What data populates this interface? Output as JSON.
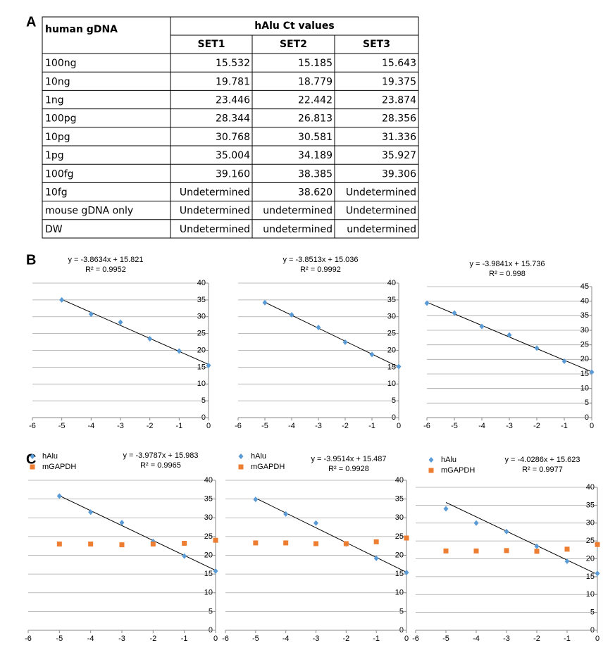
{
  "panels": {
    "a": "A",
    "b": "B",
    "c": "C"
  },
  "table": {
    "header": {
      "sample": "human gDNA",
      "group": "hAlu Ct values"
    },
    "columns": [
      "SET1",
      "SET2",
      "SET3"
    ],
    "rows": [
      [
        "100ng",
        "15.532",
        "15.185",
        "15.643"
      ],
      [
        "10ng",
        "19.781",
        "18.779",
        "19.375"
      ],
      [
        "1ng",
        "23.446",
        "22.442",
        "23.874"
      ],
      [
        "100pg",
        "28.344",
        "26.813",
        "28.356"
      ],
      [
        "10pg",
        "30.768",
        "30.581",
        "31.336"
      ],
      [
        "1pg",
        "35.004",
        "34.189",
        "35.927"
      ],
      [
        "100fg",
        "39.160",
        "38.385",
        "39.306"
      ],
      [
        "10fg",
        "Undetermined",
        "38.620",
        "Undetermined"
      ],
      [
        "mouse gDNA only",
        "Undetermined",
        "undetermined",
        "Undetermined"
      ],
      [
        "DW",
        "Undetermined",
        "undetermined",
        "undetermined"
      ]
    ]
  },
  "chart_data": [
    {
      "type": "scatter",
      "x": [
        -5,
        -4,
        -3,
        -2,
        -1,
        0
      ],
      "series": [
        {
          "color": "#5b9bd5",
          "values": [
            35.004,
            30.768,
            28.344,
            23.446,
            19.781,
            15.532
          ]
        }
      ],
      "equation": "y = -3.8634x + 15.821",
      "r_squared": "R² = 0.9952",
      "trendline": {
        "slope": -3.8634,
        "intercept": 15.821
      },
      "xlim": [
        -6,
        0
      ],
      "xticks": [
        -6,
        -5,
        -4,
        -3,
        -2,
        -1,
        0
      ],
      "ylim": [
        0,
        40
      ],
      "yticks": [
        0,
        5,
        10,
        15,
        20,
        25,
        30,
        35,
        40
      ],
      "grid": true
    },
    {
      "type": "scatter",
      "x": [
        -5,
        -4,
        -3,
        -2,
        -1,
        0
      ],
      "series": [
        {
          "color": "#5b9bd5",
          "values": [
            34.189,
            30.581,
            26.813,
            22.442,
            18.779,
            15.185
          ]
        }
      ],
      "equation": "y = -3.8513x + 15.036",
      "r_squared": "R² = 0.9992",
      "trendline": {
        "slope": -3.8513,
        "intercept": 15.036
      },
      "xlim": [
        -6,
        0
      ],
      "xticks": [
        -6,
        -5,
        -4,
        -3,
        -2,
        -1,
        0
      ],
      "ylim": [
        0,
        40
      ],
      "yticks": [
        0,
        5,
        10,
        15,
        20,
        25,
        30,
        35,
        40
      ],
      "grid": true
    },
    {
      "type": "scatter",
      "x": [
        -6,
        -5,
        -4,
        -3,
        -2,
        -1,
        0
      ],
      "series": [
        {
          "color": "#5b9bd5",
          "values": [
            39.306,
            35.927,
            31.336,
            28.356,
            23.874,
            19.375,
            15.643
          ]
        }
      ],
      "equation": "y = -3.9841x + 15.736",
      "r_squared": "R² = 0.998",
      "trendline": {
        "slope": -3.9841,
        "intercept": 15.736
      },
      "xlim": [
        -6,
        0
      ],
      "xticks": [
        -6,
        -5,
        -4,
        -3,
        -2,
        -1,
        0
      ],
      "ylim": [
        0,
        45
      ],
      "yticks": [
        0,
        5,
        10,
        15,
        20,
        25,
        30,
        35,
        40,
        45
      ],
      "grid": true
    },
    {
      "type": "scatter",
      "x": [
        -5,
        -4,
        -3,
        -2,
        -1,
        0
      ],
      "series": [
        {
          "name": "hAlu",
          "color": "#5b9bd5",
          "values": [
            35.8,
            31.5,
            28.7,
            23.7,
            19.8,
            15.8
          ]
        },
        {
          "name": "mGAPDH",
          "color": "#ed7d31",
          "values": [
            23.0,
            23.0,
            22.8,
            23.0,
            23.2,
            24.0
          ]
        }
      ],
      "equation": "y = -3.9787x + 15.983",
      "r_squared": "R² = 0.9965",
      "trendline": {
        "slope": -3.9787,
        "intercept": 15.983
      },
      "xlim": [
        -6,
        0
      ],
      "xticks": [
        -6,
        -5,
        -4,
        -3,
        -2,
        -1,
        0
      ],
      "ylim": [
        0,
        40
      ],
      "yticks": [
        0,
        5,
        10,
        15,
        20,
        25,
        30,
        35,
        40
      ],
      "grid": true,
      "legend": "top-left"
    },
    {
      "type": "scatter",
      "x": [
        -5,
        -4,
        -3,
        -2,
        -1,
        0
      ],
      "series": [
        {
          "name": "hAlu",
          "color": "#5b9bd5",
          "values": [
            34.9,
            31.0,
            28.6,
            23.0,
            19.2,
            15.4
          ]
        },
        {
          "name": "mGAPDH",
          "color": "#ed7d31",
          "values": [
            23.3,
            23.3,
            23.1,
            23.1,
            23.6,
            24.6
          ]
        }
      ],
      "equation": "y = -3.9514x + 15.487",
      "r_squared": "R² = 0.9928",
      "trendline": {
        "slope": -3.9514,
        "intercept": 15.487
      },
      "xlim": [
        -6,
        0
      ],
      "xticks": [
        -6,
        -5,
        -4,
        -3,
        -2,
        -1,
        0
      ],
      "ylim": [
        0,
        40
      ],
      "yticks": [
        0,
        5,
        10,
        15,
        20,
        25,
        30,
        35,
        40
      ],
      "grid": true,
      "legend": "top-left"
    },
    {
      "type": "scatter",
      "x": [
        -5,
        -4,
        -3,
        -2,
        -1,
        0
      ],
      "series": [
        {
          "name": "hAlu",
          "color": "#5b9bd5",
          "values": [
            34.0,
            30.0,
            27.6,
            23.5,
            19.3,
            15.9
          ]
        },
        {
          "name": "mGAPDH",
          "color": "#ed7d31",
          "values": [
            22.2,
            22.2,
            22.3,
            22.1,
            22.7,
            24.0
          ]
        }
      ],
      "equation": "y = -4.0286x + 15.623",
      "r_squared": "R² = 0.9977",
      "trendline": {
        "slope": -4.0286,
        "intercept": 15.623
      },
      "xlim": [
        -6,
        0
      ],
      "xticks": [
        -6,
        -5,
        -4,
        -3,
        -2,
        -1,
        0
      ],
      "ylim": [
        0,
        40
      ],
      "yticks": [
        0,
        5,
        10,
        15,
        20,
        25,
        30,
        35,
        40
      ],
      "grid": true,
      "legend": "top-left"
    }
  ]
}
